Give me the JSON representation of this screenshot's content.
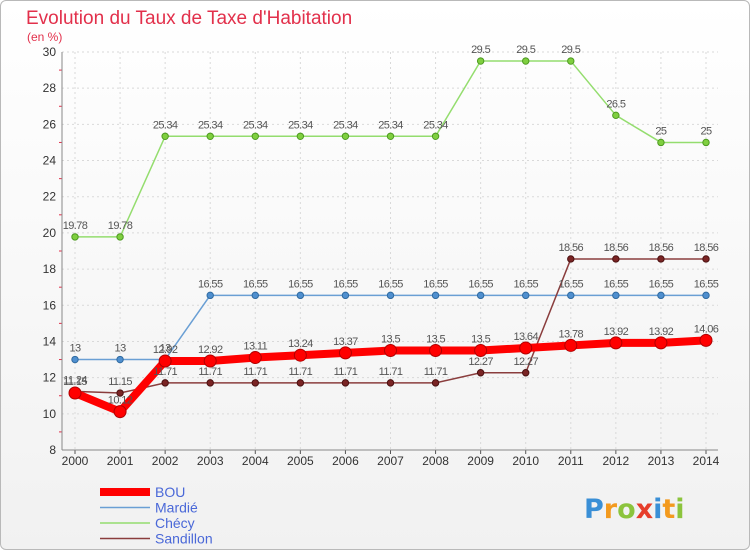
{
  "title": "Evolution du Taux de Taxe d'Habitation",
  "subtitle": "(en %)",
  "logo_text": "Proxiti",
  "chart_data": {
    "type": "line",
    "title": "Evolution du Taux de Taxe d'Habitation",
    "subtitle": "(en %)",
    "xlabel": "",
    "ylabel": "",
    "x": [
      "2000",
      "2001",
      "2002",
      "2003",
      "2004",
      "2005",
      "2006",
      "2007",
      "2008",
      "2009",
      "2010",
      "2011",
      "2012",
      "2013",
      "2014"
    ],
    "ylim": [
      8,
      30
    ],
    "yticks": [
      8,
      10,
      12,
      14,
      16,
      18,
      20,
      22,
      24,
      26,
      28,
      30
    ],
    "grid": true,
    "legend_position": "bottom-left",
    "series": [
      {
        "name": "BOU",
        "color": "#ff0000",
        "values": [
          11.15,
          10.12,
          12.92,
          12.92,
          13.11,
          13.24,
          13.37,
          13.5,
          13.5,
          13.5,
          13.64,
          13.78,
          13.92,
          13.92,
          14.06
        ],
        "labels": [
          "11.15",
          "10.12",
          "12.92",
          "12.92",
          "13.11",
          "13.24",
          "13.37",
          "13.5",
          "13.5",
          "13.5",
          "13.64",
          "13.78",
          "13.92",
          "13.92",
          "14.06"
        ]
      },
      {
        "name": "Mardié",
        "color": "#6a9fd4",
        "values": [
          13,
          13,
          13,
          16.55,
          16.55,
          16.55,
          16.55,
          16.55,
          16.55,
          16.55,
          16.55,
          16.55,
          16.55,
          16.55,
          16.55
        ],
        "labels": [
          "13",
          "13",
          "13",
          "16.55",
          "16.55",
          "16.55",
          "16.55",
          "16.55",
          "16.55",
          "16.55",
          "16.55",
          "16.55",
          "16.55",
          "16.55",
          "16.55"
        ]
      },
      {
        "name": "Chécy",
        "color": "#94dd6e",
        "values": [
          19.78,
          19.78,
          25.34,
          25.34,
          25.34,
          25.34,
          25.34,
          25.34,
          25.34,
          29.5,
          29.5,
          29.5,
          26.5,
          25,
          25
        ],
        "labels": [
          "19.78",
          "19.78",
          "25.34",
          "25.34",
          "25.34",
          "25.34",
          "25.34",
          "25.34",
          "25.34",
          "29.5",
          "29.5",
          "29.5",
          "26.5",
          "25",
          "25"
        ]
      },
      {
        "name": "Sandillon",
        "color": "#8a3d3d",
        "values": [
          11.24,
          11.15,
          11.71,
          11.71,
          11.71,
          11.71,
          11.71,
          11.71,
          11.71,
          12.27,
          12.27,
          18.56,
          18.56,
          18.56,
          18.56
        ],
        "labels": [
          "11.24",
          "11.15",
          "11.71",
          "11.71",
          "11.71",
          "11.71",
          "11.71",
          "11.71",
          "11.71",
          "12.27",
          "12.27",
          "18.56",
          "18.56",
          "18.56",
          "18.56"
        ]
      }
    ]
  }
}
